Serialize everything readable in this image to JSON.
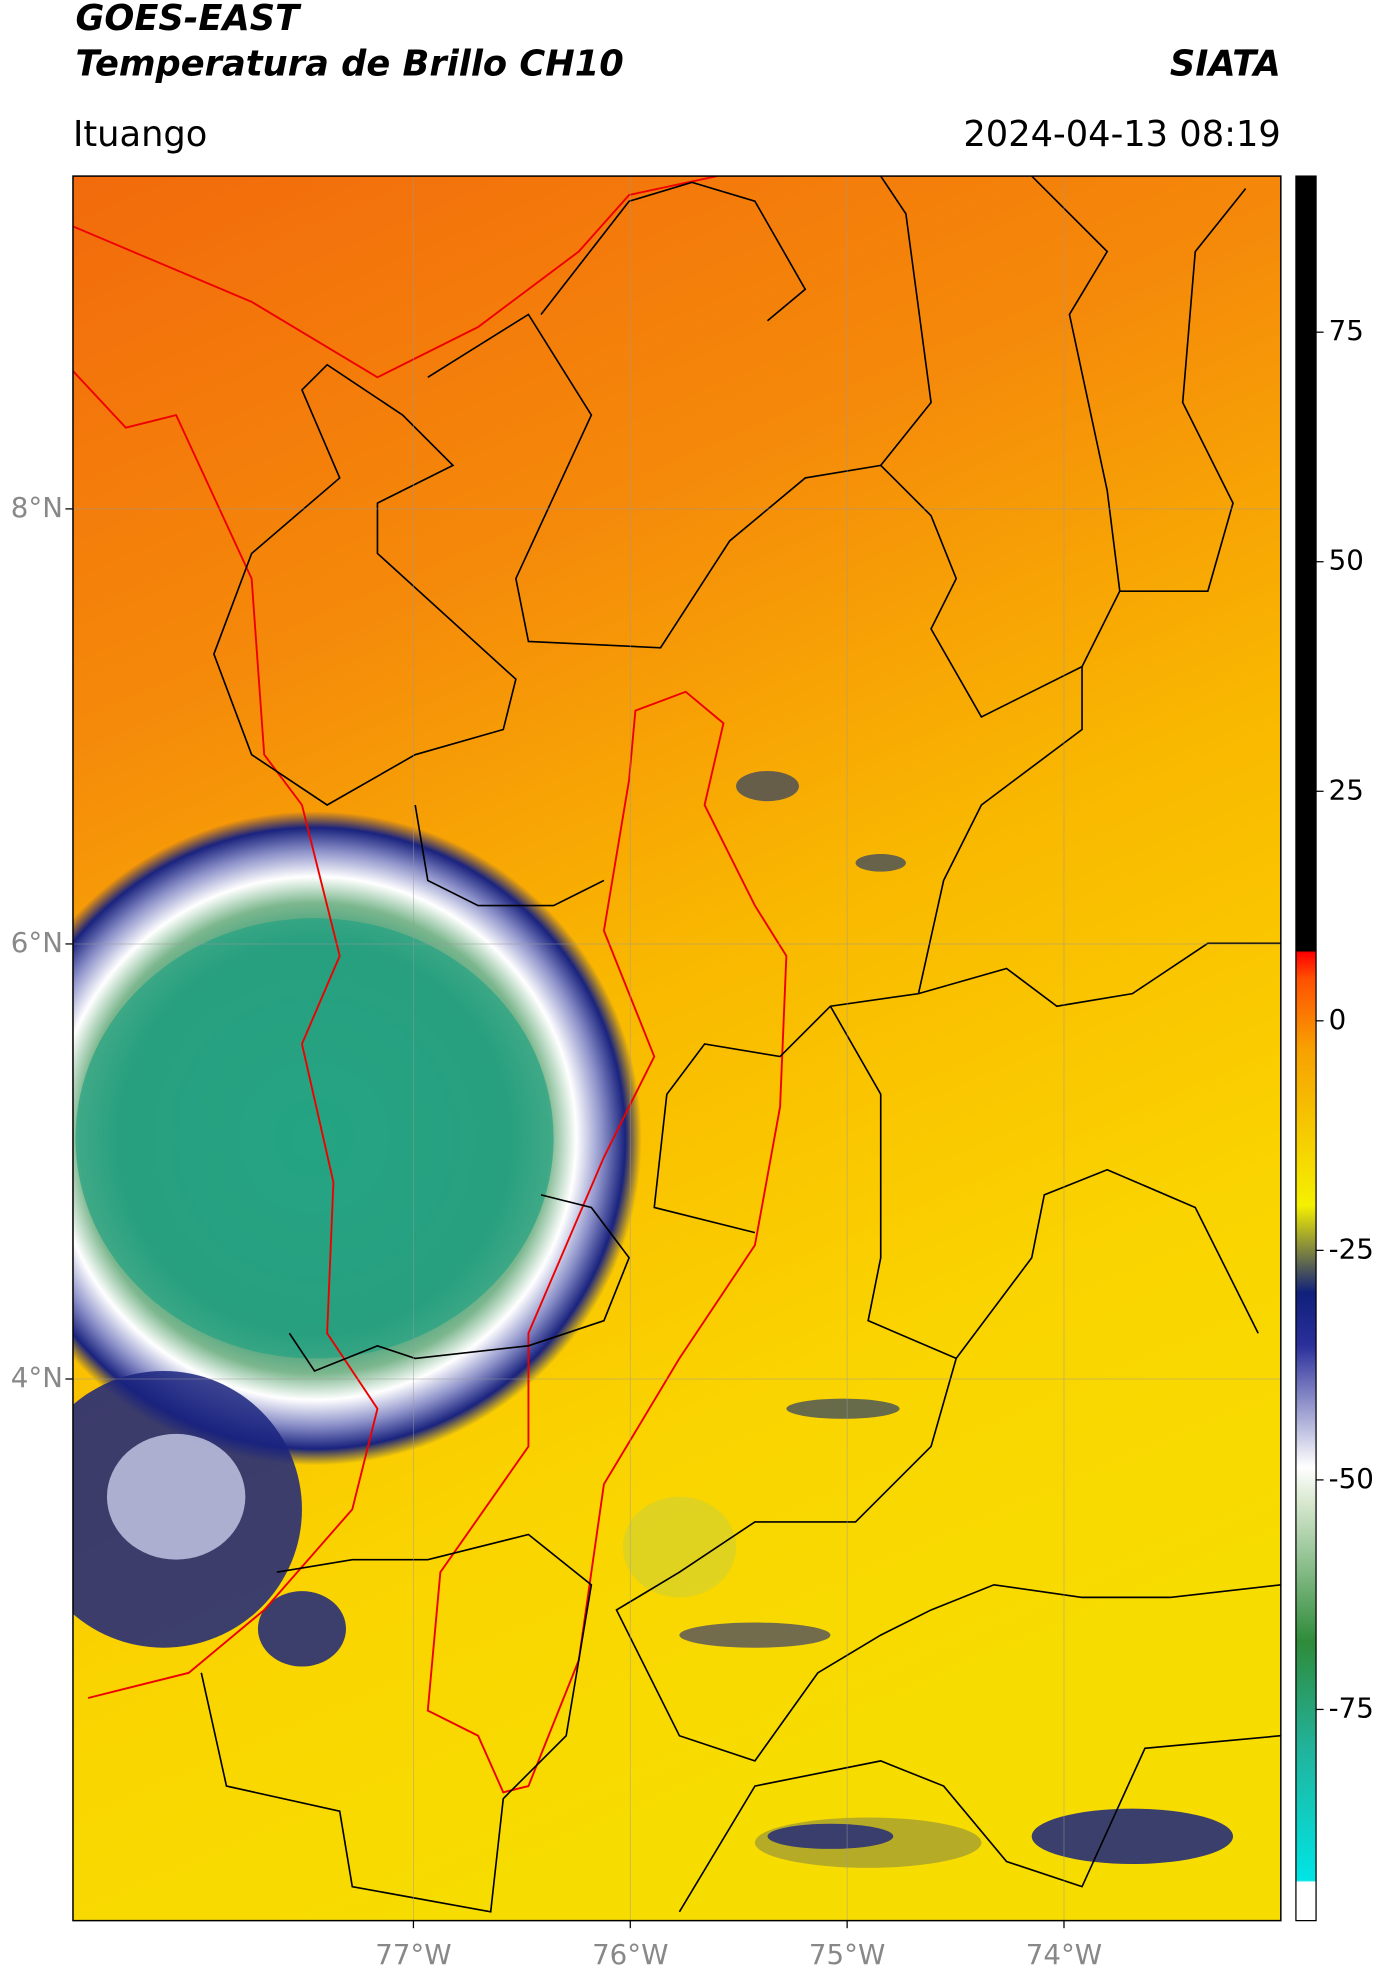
{
  "header": {
    "title": "GOES-EAST",
    "subtitle": "Temperatura de Brillo CH10",
    "source": "SIATA",
    "location": "Ituango",
    "datetime": "2024-04-13 08:19"
  },
  "map": {
    "lonlim": [
      -78.57,
      -73.0
    ],
    "latlim": [
      1.51,
      9.53
    ],
    "lonticks": [
      {
        "value": -77,
        "label": "77°W"
      },
      {
        "value": -76,
        "label": "76°W"
      },
      {
        "value": -75,
        "label": "75°W"
      },
      {
        "value": -74,
        "label": "74°W"
      }
    ],
    "latticks": [
      {
        "value": 8,
        "label": "8°N"
      },
      {
        "value": 6,
        "label": "6°N"
      },
      {
        "value": 4,
        "label": "4°N"
      }
    ],
    "grid": true
  },
  "colorbar": {
    "clim": [
      -98,
      92
    ],
    "ticks": [
      75,
      50,
      25,
      0,
      -25,
      -50,
      -75
    ]
  }
}
